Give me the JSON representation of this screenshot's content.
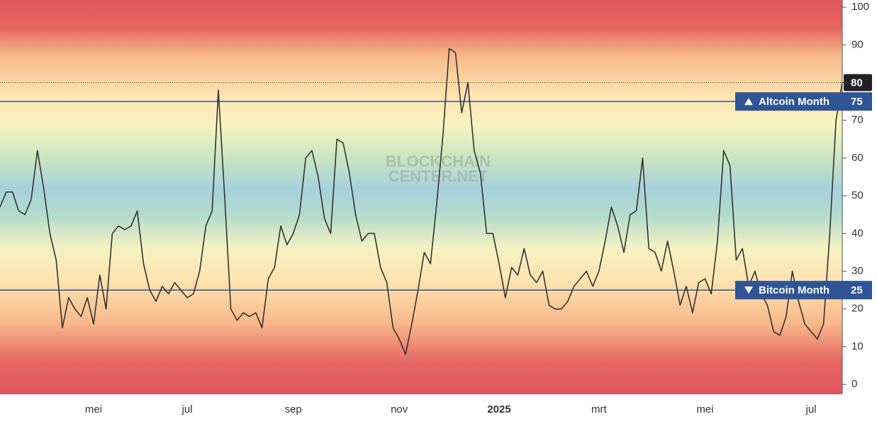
{
  "chart_data": {
    "type": "line",
    "watermark": [
      "BLOCKCHAIN",
      "CENTER.NET"
    ],
    "categories": [
      null,
      null,
      null,
      null,
      null,
      null,
      null,
      null,
      null,
      null,
      null,
      null,
      null,
      null,
      null,
      "mei",
      null,
      null,
      null,
      null,
      null,
      null,
      null,
      null,
      null,
      null,
      null,
      null,
      null,
      null,
      "jul",
      null,
      null,
      null,
      null,
      null,
      null,
      null,
      null,
      null,
      null,
      null,
      null,
      null,
      null,
      null,
      null,
      "sep",
      null,
      null,
      null,
      null,
      null,
      null,
      null,
      null,
      null,
      null,
      null,
      null,
      null,
      null,
      null,
      null,
      "nov",
      null,
      null,
      null,
      null,
      null,
      null,
      null,
      null,
      null,
      null,
      null,
      null,
      null,
      null,
      null,
      "2025",
      null,
      null,
      null,
      null,
      null,
      null,
      null,
      null,
      null,
      null,
      null,
      null,
      null,
      null,
      null,
      "mrt",
      null,
      null,
      null,
      null,
      null,
      null,
      null,
      null,
      null,
      null,
      null,
      null,
      null,
      null,
      null,
      null,
      "mei",
      null,
      null,
      null,
      null,
      null,
      null,
      null,
      null,
      null,
      null,
      null,
      null,
      null,
      null,
      null,
      null,
      "jul",
      null,
      null,
      null,
      null,
      null
    ],
    "series": [
      {
        "color": "#333333",
        "values": [
          47,
          51,
          51,
          46,
          45,
          49,
          62,
          52,
          40,
          33,
          15,
          23,
          20,
          18,
          23,
          16,
          29,
          20,
          40,
          42,
          41,
          42,
          46,
          32,
          25,
          22,
          26,
          24,
          27,
          25,
          23,
          24,
          30,
          42,
          46,
          78,
          50,
          20,
          17,
          19,
          18,
          19,
          15,
          28,
          31,
          42,
          37,
          40,
          45,
          60,
          62,
          55,
          44,
          40,
          65,
          64,
          56,
          45,
          38,
          40,
          40,
          31,
          27,
          15,
          12,
          8,
          16,
          25,
          35,
          32,
          48,
          66,
          89,
          88,
          72,
          80,
          62,
          56,
          40,
          40,
          32,
          23,
          31,
          29,
          36,
          29,
          27,
          30,
          21,
          20,
          20,
          22,
          26,
          28,
          30,
          26,
          30,
          38,
          47,
          42,
          35,
          45,
          46,
          60,
          36,
          35,
          30,
          38,
          30,
          21,
          26,
          19,
          27,
          28,
          24,
          38,
          62,
          58,
          33,
          36,
          26,
          30,
          24,
          21,
          14,
          13,
          18,
          30,
          22,
          16,
          14,
          12,
          16,
          40,
          70,
          80
        ]
      }
    ],
    "reference_lines": [
      {
        "value": 75,
        "label": "Altcoin Month",
        "color": "#2f5597"
      },
      {
        "value": 25,
        "label": "Bitcoin Month",
        "color": "#2f5597"
      }
    ],
    "ylim": [
      -2.6,
      101.9
    ],
    "yticks": [
      0,
      10,
      20,
      30,
      40,
      50,
      60,
      70,
      80,
      90,
      100
    ],
    "bold_categories": [
      "2025"
    ]
  }
}
